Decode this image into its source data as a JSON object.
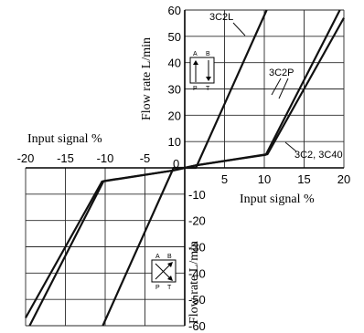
{
  "chart_data": {
    "type": "line",
    "x_axis": {
      "range": [
        -20,
        20
      ],
      "ticks": [
        -20,
        -15,
        -10,
        -5,
        0,
        5,
        10,
        15,
        20
      ]
    },
    "y_axis": {
      "range": [
        -60,
        60
      ],
      "ticks": [
        -60,
        -50,
        -40,
        -30,
        -20,
        -10,
        0,
        10,
        20,
        30,
        40,
        50,
        60
      ]
    },
    "xlabel_left": "Input signal   %",
    "xlabel_right": "Input signal   %",
    "ylabel_top": "Flow rate   L/min",
    "ylabel_bottom": "Flow rate   L/min",
    "origin_label": "0",
    "series": [
      {
        "name": "3C2L",
        "points": [
          [
            -10.3,
            -60
          ],
          [
            -1.4,
            0
          ],
          [
            1.4,
            0
          ],
          [
            10.3,
            60
          ]
        ]
      },
      {
        "name": "3C2P",
        "points": [
          [
            -19.5,
            -60
          ],
          [
            -10.2,
            -5
          ],
          [
            -1.5,
            -1
          ],
          [
            0,
            0
          ],
          [
            1.5,
            1
          ],
          [
            10.2,
            5
          ],
          [
            19.5,
            60
          ]
        ]
      },
      {
        "name": "3C2, 3C40",
        "points": [
          [
            -20,
            -57
          ],
          [
            -10.4,
            -5.2
          ],
          [
            -1.5,
            -1
          ],
          [
            0,
            0
          ],
          [
            1.5,
            1
          ],
          [
            10.4,
            5.2
          ],
          [
            20,
            57
          ]
        ]
      }
    ],
    "symbol_top": {
      "ports_top": [
        "A",
        "B"
      ],
      "ports_bottom": [
        "P",
        "T"
      ]
    },
    "symbol_bottom": {
      "ports_top": [
        "A",
        "B"
      ],
      "ports_bottom": [
        "P",
        "T"
      ]
    },
    "grid": true,
    "legend": "labels next to curves"
  }
}
